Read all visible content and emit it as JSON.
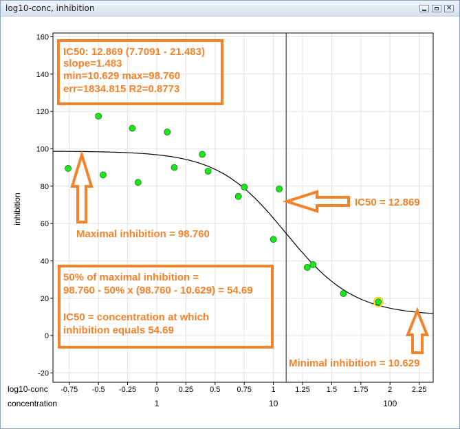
{
  "window": {
    "title": "log10-conc, inhibition"
  },
  "chart_data": {
    "type": "scatter",
    "xlabel": "log10-conc",
    "x2label": "concentration",
    "ylabel": "inhibition",
    "xlim": [
      -0.89,
      2.37
    ],
    "ylim": [
      -25,
      162
    ],
    "grid": true,
    "x_ticks": [
      -0.75,
      -0.5,
      -0.25,
      0,
      0.25,
      0.5,
      0.75,
      1,
      1.25,
      1.5,
      1.75,
      2,
      2.25
    ],
    "x_tick_labels": [
      "-0.75",
      "-0.5",
      "-0.25",
      "0",
      "0.25",
      "0.5",
      "0.75",
      "1",
      "1.25",
      "1.5",
      "1.75",
      "2",
      "2.25"
    ],
    "x2_ticks": [
      0,
      1,
      2
    ],
    "x2_tick_labels": [
      "1",
      "10",
      "100"
    ],
    "y_ticks": [
      -20,
      0,
      20,
      40,
      60,
      80,
      100,
      120,
      140,
      160
    ],
    "y_tick_labels": [
      "-20",
      "0",
      "20",
      "40",
      "60",
      "80",
      "100",
      "120",
      "140",
      "160"
    ],
    "points": [
      {
        "x": -0.76,
        "y": 89.5
      },
      {
        "x": -0.5,
        "y": 117.5
      },
      {
        "x": -0.46,
        "y": 86
      },
      {
        "x": -0.21,
        "y": 111
      },
      {
        "x": -0.16,
        "y": 82
      },
      {
        "x": 0.09,
        "y": 109
      },
      {
        "x": 0.15,
        "y": 90
      },
      {
        "x": 0.39,
        "y": 97
      },
      {
        "x": 0.44,
        "y": 88
      },
      {
        "x": 0.7,
        "y": 74.5
      },
      {
        "x": 0.75,
        "y": 79.5
      },
      {
        "x": 1.0,
        "y": 51.5
      },
      {
        "x": 1.05,
        "y": 78.5
      },
      {
        "x": 1.29,
        "y": 36.5
      },
      {
        "x": 1.34,
        "y": 38
      },
      {
        "x": 1.6,
        "y": 22.5
      },
      {
        "x": 1.9,
        "y": 18,
        "highlighted": true
      }
    ],
    "fit": {
      "model": "4PL",
      "min": 10.629,
      "max": 98.76,
      "log10_ic50": 1.1096,
      "slope": 1.483
    },
    "ic50_line_x": 1.1096,
    "colors": {
      "point_fill": "#1ee61e",
      "point_stroke": "#0a7a0a",
      "highlight_ring": "#ffd400",
      "curve": "#000000",
      "vline": "#404040",
      "annotation": "#f5822a",
      "grid": "#e2e2e2"
    },
    "annotations": {
      "stats_box": [
        "IC50: 12.869 (7.7091 - 21.483)",
        "slope=1.483",
        "min=10.629 max=98.760",
        "err=1834.815 R2=0.8773"
      ],
      "formula_box": [
        "50% of maximal inhibition =",
        "98.760 - 50% x (98.760 - 10.629) = 54.69",
        "",
        "IC50 = concentration at which",
        "inhibition equals 54.69"
      ],
      "ic50_label": "IC50 = 12.869",
      "max_label": "Maximal inhibition = 98.760",
      "min_label": "Minimal inhibition = 10.629"
    }
  }
}
